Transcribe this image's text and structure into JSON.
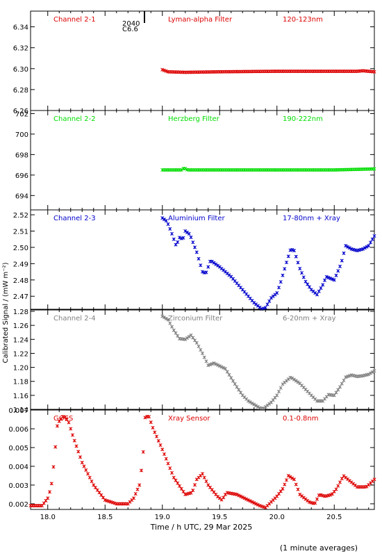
{
  "x_axis": {
    "label": "Time / h UTC, 29 Mar 2025",
    "ticks": [
      "18.0",
      "18.5",
      "19.0",
      "19.5",
      "20.0",
      "20.5"
    ],
    "range": [
      17.85,
      20.85
    ]
  },
  "y_axis_label": "Calibrated Signal / (mW m⁻²)",
  "footnote": "(1 minute averages)",
  "event_marker": {
    "time": "2040",
    "class": "C6.6"
  },
  "panels": [
    {
      "channel": "Channel 2-1",
      "filter": "Lyman-alpha Filter",
      "band": "120-123nm",
      "color": "#dd0000",
      "ticks": [
        "6.34",
        "6.32",
        "6.30",
        "6.28",
        "6.26"
      ]
    },
    {
      "channel": "Channel 2-2",
      "filter": "Herzberg Filter",
      "band": "190-222nm",
      "color": "#00dd00",
      "ticks": [
        "702",
        "700",
        "698",
        "696",
        "694"
      ]
    },
    {
      "channel": "Channel 2-3",
      "filter": "Aluminium Filter",
      "band": "17-80nm + Xray",
      "color": "#0000cc",
      "ticks": [
        "2.52",
        "2.51",
        "2.50",
        "2.49",
        "2.48",
        "2.47"
      ]
    },
    {
      "channel": "Channel 2-4",
      "filter": "Zirconium Filter",
      "band": "6-20nm + Xray",
      "color": "#808080",
      "ticks": [
        "1.28",
        "1.26",
        "1.24",
        "1.22",
        "1.20",
        "1.18",
        "1.16",
        "1.14"
      ]
    },
    {
      "channel": "GOES",
      "filter": "Xray Sensor",
      "band": "0.1-0.8nm",
      "color": "#dd0000",
      "ticks": [
        "0.007",
        "0.006",
        "0.005",
        "0.004",
        "0.003",
        "0.002"
      ]
    }
  ],
  "chart_data": [
    {
      "type": "scatter",
      "series": [
        {
          "name": "Channel 2-1",
          "color": "#dd0000",
          "points": [
            [
              19.0,
              6.299
            ],
            [
              19.05,
              6.297
            ],
            [
              19.2,
              6.2965
            ],
            [
              19.5,
              6.297
            ],
            [
              20.0,
              6.2975
            ],
            [
              20.5,
              6.2975
            ],
            [
              20.7,
              6.2975
            ],
            [
              20.75,
              6.298
            ],
            [
              20.85,
              6.297
            ]
          ]
        }
      ],
      "ylim": [
        6.26,
        6.355
      ]
    },
    {
      "type": "scatter",
      "series": [
        {
          "name": "Channel 2-2",
          "color": "#00dd00",
          "points": [
            [
              19.0,
              696.5
            ],
            [
              19.17,
              696.5
            ],
            [
              19.19,
              696.7
            ],
            [
              19.22,
              696.5
            ],
            [
              20.0,
              696.5
            ],
            [
              20.5,
              696.5
            ],
            [
              20.85,
              696.6
            ]
          ]
        }
      ],
      "ylim": [
        692.6,
        702.3
      ]
    },
    {
      "type": "scatter",
      "series": [
        {
          "name": "Channel 2-3",
          "color": "#0000cc",
          "points": [
            [
              19.0,
              2.518
            ],
            [
              19.04,
              2.516
            ],
            [
              19.08,
              2.509
            ],
            [
              19.12,
              2.501
            ],
            [
              19.15,
              2.506
            ],
            [
              19.18,
              2.505
            ],
            [
              19.2,
              2.51
            ],
            [
              19.24,
              2.508
            ],
            [
              19.3,
              2.497
            ],
            [
              19.35,
              2.485
            ],
            [
              19.38,
              2.484
            ],
            [
              19.42,
              2.492
            ],
            [
              19.5,
              2.488
            ],
            [
              19.55,
              2.485
            ],
            [
              19.6,
              2.482
            ],
            [
              19.7,
              2.474
            ],
            [
              19.8,
              2.466
            ],
            [
              19.87,
              2.462
            ],
            [
              19.9,
              2.463
            ],
            [
              19.95,
              2.469
            ],
            [
              20.0,
              2.472
            ],
            [
              20.03,
              2.478
            ],
            [
              20.08,
              2.49
            ],
            [
              20.12,
              2.499
            ],
            [
              20.15,
              2.498
            ],
            [
              20.2,
              2.487
            ],
            [
              20.25,
              2.479
            ],
            [
              20.3,
              2.474
            ],
            [
              20.35,
              2.471
            ],
            [
              20.4,
              2.477
            ],
            [
              20.43,
              2.482
            ],
            [
              20.5,
              2.48
            ],
            [
              20.56,
              2.49
            ],
            [
              20.6,
              2.501
            ],
            [
              20.65,
              2.499
            ],
            [
              20.7,
              2.498
            ],
            [
              20.75,
              2.499
            ],
            [
              20.8,
              2.501
            ],
            [
              20.85,
              2.507
            ]
          ]
        }
      ],
      "ylim": [
        2.462,
        2.523
      ]
    },
    {
      "type": "scatter",
      "series": [
        {
          "name": "Channel 2-4",
          "color": "#808080",
          "points": [
            [
              19.0,
              1.273
            ],
            [
              19.05,
              1.268
            ],
            [
              19.1,
              1.253
            ],
            [
              19.15,
              1.241
            ],
            [
              19.2,
              1.24
            ],
            [
              19.25,
              1.246
            ],
            [
              19.3,
              1.235
            ],
            [
              19.35,
              1.22
            ],
            [
              19.4,
              1.203
            ],
            [
              19.45,
              1.206
            ],
            [
              19.55,
              1.198
            ],
            [
              19.6,
              1.185
            ],
            [
              19.65,
              1.172
            ],
            [
              19.7,
              1.16
            ],
            [
              19.75,
              1.152
            ],
            [
              19.85,
              1.142
            ],
            [
              19.88,
              1.141
            ],
            [
              19.95,
              1.15
            ],
            [
              20.0,
              1.16
            ],
            [
              20.05,
              1.176
            ],
            [
              20.12,
              1.186
            ],
            [
              20.2,
              1.177
            ],
            [
              20.3,
              1.16
            ],
            [
              20.35,
              1.152
            ],
            [
              20.4,
              1.152
            ],
            [
              20.45,
              1.161
            ],
            [
              20.5,
              1.16
            ],
            [
              20.55,
              1.172
            ],
            [
              20.6,
              1.186
            ],
            [
              20.65,
              1.189
            ],
            [
              20.7,
              1.187
            ],
            [
              20.75,
              1.188
            ],
            [
              20.8,
              1.19
            ],
            [
              20.85,
              1.195
            ]
          ]
        }
      ],
      "ylim": [
        1.14,
        1.282
      ]
    },
    {
      "type": "scatter",
      "series": [
        {
          "name": "GOES",
          "color": "#dd0000",
          "points": [
            [
              17.85,
              0.0019
            ],
            [
              17.95,
              0.0019
            ],
            [
              18.0,
              0.0023
            ],
            [
              18.03,
              0.0029
            ],
            [
              18.06,
              0.0045
            ],
            [
              18.08,
              0.0061
            ],
            [
              18.1,
              0.0064
            ],
            [
              18.14,
              0.0067
            ],
            [
              18.18,
              0.0064
            ],
            [
              18.22,
              0.0056
            ],
            [
              18.3,
              0.0042
            ],
            [
              18.4,
              0.003
            ],
            [
              18.5,
              0.0022
            ],
            [
              18.6,
              0.002
            ],
            [
              18.7,
              0.002
            ],
            [
              18.75,
              0.0023
            ],
            [
              18.8,
              0.003
            ],
            [
              18.83,
              0.0044
            ],
            [
              18.85,
              0.0066
            ],
            [
              18.88,
              0.0067
            ],
            [
              18.92,
              0.006
            ],
            [
              19.0,
              0.0049
            ],
            [
              19.1,
              0.0034
            ],
            [
              19.2,
              0.0025
            ],
            [
              19.26,
              0.0026
            ],
            [
              19.3,
              0.0033
            ],
            [
              19.35,
              0.0036
            ],
            [
              19.4,
              0.003
            ],
            [
              19.48,
              0.0024
            ],
            [
              19.52,
              0.0022
            ],
            [
              19.56,
              0.0026
            ],
            [
              19.65,
              0.0025
            ],
            [
              19.75,
              0.0022
            ],
            [
              19.85,
              0.0019
            ],
            [
              19.9,
              0.0018
            ],
            [
              19.95,
              0.0021
            ],
            [
              20.0,
              0.0024
            ],
            [
              20.05,
              0.0028
            ],
            [
              20.1,
              0.0035
            ],
            [
              20.15,
              0.0033
            ],
            [
              20.2,
              0.0025
            ],
            [
              20.28,
              0.0021
            ],
            [
              20.33,
              0.002
            ],
            [
              20.37,
              0.0025
            ],
            [
              20.42,
              0.0024
            ],
            [
              20.48,
              0.0025
            ],
            [
              20.52,
              0.0028
            ],
            [
              20.58,
              0.0035
            ],
            [
              20.62,
              0.0033
            ],
            [
              20.7,
              0.0029
            ],
            [
              20.78,
              0.0029
            ],
            [
              20.85,
              0.0033
            ]
          ]
        }
      ],
      "ylim": [
        0.0017,
        0.007
      ]
    }
  ]
}
